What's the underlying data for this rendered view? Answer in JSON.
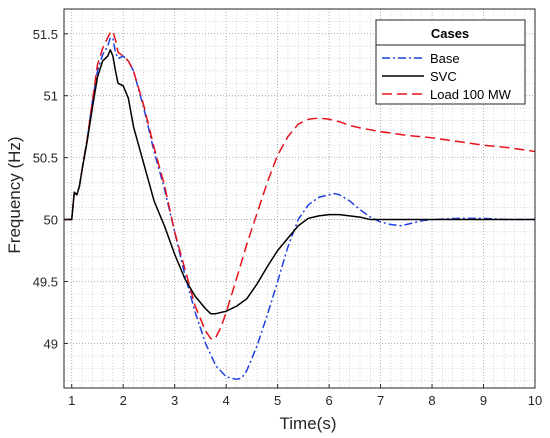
{
  "chart_data": {
    "type": "line",
    "xlabel": "Time(s)",
    "ylabel": "Frequency (Hz)",
    "xlim": [
      0.85,
      10
    ],
    "ylim": [
      48.64,
      51.7
    ],
    "xticks": [
      1,
      2,
      3,
      4,
      5,
      6,
      7,
      8,
      9,
      10
    ],
    "xtick_labels": [
      "1",
      "2",
      "3",
      "4",
      "5",
      "6",
      "7",
      "8",
      "9",
      "10"
    ],
    "yticks": [
      49,
      49.5,
      50,
      50.5,
      51,
      51.5
    ],
    "ytick_labels": [
      "49",
      "49.5",
      "50",
      "50.5",
      "51",
      "51.5"
    ],
    "grid": "major and minor dotted",
    "legend": {
      "title": "Cases",
      "placement": "top-right",
      "entries": [
        "Base",
        "SVC",
        "Load 100 MW"
      ]
    },
    "series": [
      {
        "name": "Base",
        "color": "#1f3fe0",
        "style": "dash-dot",
        "x": [
          0.85,
          1.0,
          1.05,
          1.1,
          1.15,
          1.2,
          1.3,
          1.4,
          1.5,
          1.6,
          1.7,
          1.75,
          1.8,
          1.85,
          1.9,
          2.0,
          2.1,
          2.2,
          2.4,
          2.6,
          2.8,
          3.0,
          3.2,
          3.4,
          3.6,
          3.8,
          4.0,
          4.2,
          4.3,
          4.4,
          4.6,
          4.8,
          5.0,
          5.2,
          5.4,
          5.6,
          5.8,
          6.0,
          6.1,
          6.2,
          6.4,
          6.6,
          6.8,
          7.0,
          7.2,
          7.4,
          7.6,
          7.8,
          8.0,
          8.5,
          9.0,
          9.5,
          10.0
        ],
        "y": [
          50.0,
          50.0,
          50.22,
          50.2,
          50.27,
          50.4,
          50.65,
          50.95,
          51.2,
          51.33,
          51.4,
          51.47,
          51.46,
          51.35,
          51.3,
          51.32,
          51.28,
          51.2,
          50.9,
          50.55,
          50.25,
          49.9,
          49.55,
          49.25,
          49.0,
          48.82,
          48.73,
          48.71,
          48.72,
          48.78,
          48.98,
          49.23,
          49.5,
          49.78,
          50.0,
          50.12,
          50.18,
          50.2,
          50.21,
          50.2,
          50.15,
          50.08,
          50.02,
          49.98,
          49.96,
          49.95,
          49.97,
          49.99,
          50.0,
          50.01,
          50.01,
          50.0,
          50.0
        ]
      },
      {
        "name": "SVC",
        "color": "#000000",
        "style": "solid",
        "x": [
          0.85,
          1.0,
          1.05,
          1.1,
          1.15,
          1.2,
          1.3,
          1.4,
          1.5,
          1.6,
          1.7,
          1.75,
          1.8,
          1.85,
          1.9,
          2.0,
          2.1,
          2.2,
          2.4,
          2.6,
          2.8,
          3.0,
          3.2,
          3.4,
          3.6,
          3.7,
          3.8,
          3.9,
          4.0,
          4.2,
          4.4,
          4.6,
          4.8,
          5.0,
          5.2,
          5.4,
          5.6,
          5.8,
          6.0,
          6.2,
          6.4,
          6.6,
          6.8,
          7.0,
          7.2,
          7.5,
          8.0,
          8.5,
          9.0,
          9.5,
          10.0
        ],
        "y": [
          50.0,
          50.0,
          50.22,
          50.2,
          50.27,
          50.4,
          50.63,
          50.9,
          51.15,
          51.28,
          51.32,
          51.37,
          51.32,
          51.2,
          51.1,
          51.08,
          50.98,
          50.75,
          50.45,
          50.15,
          49.95,
          49.72,
          49.52,
          49.38,
          49.28,
          49.24,
          49.24,
          49.25,
          49.26,
          49.3,
          49.36,
          49.48,
          49.62,
          49.75,
          49.85,
          49.95,
          50.01,
          50.03,
          50.04,
          50.04,
          50.03,
          50.02,
          50.0,
          50.0,
          50.0,
          50.0,
          50.0,
          50.0,
          50.0,
          50.0,
          50.0
        ]
      },
      {
        "name": "Load 100 MW",
        "color": "#e8121b",
        "style": "dashed",
        "x": [
          0.85,
          1.0,
          1.05,
          1.1,
          1.15,
          1.2,
          1.3,
          1.4,
          1.5,
          1.6,
          1.7,
          1.75,
          1.8,
          1.85,
          1.9,
          2.0,
          2.1,
          2.2,
          2.4,
          2.6,
          2.8,
          3.0,
          3.2,
          3.4,
          3.6,
          3.7,
          3.75,
          3.8,
          3.9,
          4.0,
          4.2,
          4.4,
          4.6,
          4.8,
          5.0,
          5.2,
          5.4,
          5.6,
          5.8,
          6.0,
          6.2,
          6.4,
          6.6,
          7.0,
          7.5,
          8.0,
          8.5,
          9.0,
          9.5,
          10.0
        ],
        "y": [
          50.0,
          50.0,
          50.22,
          50.2,
          50.27,
          50.4,
          50.65,
          50.95,
          51.25,
          51.38,
          51.47,
          51.51,
          51.52,
          51.45,
          51.35,
          51.32,
          51.28,
          51.2,
          50.92,
          50.58,
          50.28,
          49.9,
          49.6,
          49.3,
          49.1,
          49.04,
          49.03,
          49.05,
          49.13,
          49.25,
          49.52,
          49.8,
          50.05,
          50.3,
          50.52,
          50.67,
          50.77,
          50.81,
          50.82,
          50.81,
          50.79,
          50.76,
          50.74,
          50.71,
          50.68,
          50.66,
          50.63,
          50.6,
          50.58,
          50.55
        ]
      }
    ]
  }
}
